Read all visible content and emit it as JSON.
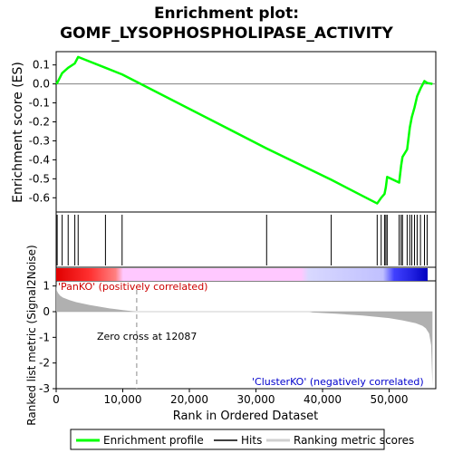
{
  "chart_data": {
    "type": "line",
    "title_line1": "Enrichment plot:",
    "title_line2": "GOMF_LYSOPHOSPHOLIPASE_ACTIVITY",
    "es_ylabel": "Enrichment score (ES)",
    "metric_ylabel": "Ranked list metric (Signal2Noise)",
    "xlabel": "Rank in Ordered Dataset",
    "xlim": [
      0,
      57000
    ],
    "es_ylim": [
      -0.675,
      0.17
    ],
    "metric_ylim": [
      -3.0,
      1.2
    ],
    "x_ticks": [
      "0",
      "10,000",
      "20,000",
      "30,000",
      "40,000",
      "50,000"
    ],
    "x_tick_values": [
      0,
      10000,
      20000,
      30000,
      40000,
      50000
    ],
    "es_ticks": [
      "0.1",
      "0.0",
      "-0.1",
      "-0.2",
      "-0.3",
      "-0.4",
      "-0.5",
      "-0.6"
    ],
    "es_tick_values": [
      0.1,
      0.0,
      -0.1,
      -0.2,
      -0.3,
      -0.4,
      -0.5,
      -0.6
    ],
    "metric_ticks": [
      "1",
      "0",
      "-1",
      "-2",
      "-3"
    ],
    "metric_tick_values": [
      1,
      0,
      -1,
      -2,
      -3
    ],
    "hits": [
      150,
      900,
      1800,
      2800,
      3300,
      7400,
      9900,
      31600,
      41300,
      48200,
      48800,
      49300,
      49500,
      49700,
      51500,
      51800,
      52000,
      52700,
      53100,
      53400,
      53800,
      54200,
      54700,
      55300,
      55700
    ],
    "es_profile": {
      "x": [
        0,
        150,
        900,
        1800,
        2800,
        3300,
        7400,
        9900,
        31600,
        41300,
        48200,
        48800,
        49300,
        49500,
        49700,
        51500,
        51800,
        52000,
        52700,
        53100,
        53400,
        53800,
        54200,
        54700,
        55300,
        55700,
        56500
      ],
      "y": [
        0.0,
        0.005,
        0.057,
        0.085,
        0.108,
        0.142,
        0.085,
        0.05,
        -0.34,
        -0.505,
        -0.63,
        -0.6,
        -0.58,
        -0.545,
        -0.49,
        -0.52,
        -0.43,
        -0.385,
        -0.345,
        -0.23,
        -0.175,
        -0.125,
        -0.065,
        -0.025,
        0.015,
        0.005,
        0.0
      ]
    },
    "metric_profile": {
      "x": [
        0,
        100,
        300,
        600,
        1000,
        2000,
        3000,
        5000,
        8000,
        10000,
        12087,
        12100,
        38000,
        38500,
        42000,
        46000,
        50000,
        52000,
        54000,
        55000,
        55500,
        56000,
        56300,
        56500
      ],
      "y": [
        1.05,
        0.82,
        0.72,
        0.62,
        0.55,
        0.45,
        0.37,
        0.26,
        0.13,
        0.06,
        0.0,
        0.0,
        0.0,
        -0.03,
        -0.08,
        -0.15,
        -0.25,
        -0.34,
        -0.45,
        -0.55,
        -0.65,
        -0.85,
        -1.3,
        -2.9
      ]
    },
    "pos_label": "'PanKO' (positively correlated)",
    "neg_label": "'ClusterKO' (negatively correlated)",
    "zero_cross_label": "Zero cross at 12087",
    "zero_cross": 12087,
    "legend": [
      {
        "label": "Enrichment profile",
        "color": "#00ff00"
      },
      {
        "label": "Hits",
        "color": "#000000"
      },
      {
        "label": "Ranking metric scores",
        "color": "#c0c0c0"
      }
    ],
    "colors": {
      "es_line": "#00ff00",
      "hit_line": "#000000",
      "metric_fill": "#b0b0b0",
      "pos_text": "#cc0000",
      "neg_text": "#0000cc",
      "zero_line": "#b0b0b0"
    }
  }
}
